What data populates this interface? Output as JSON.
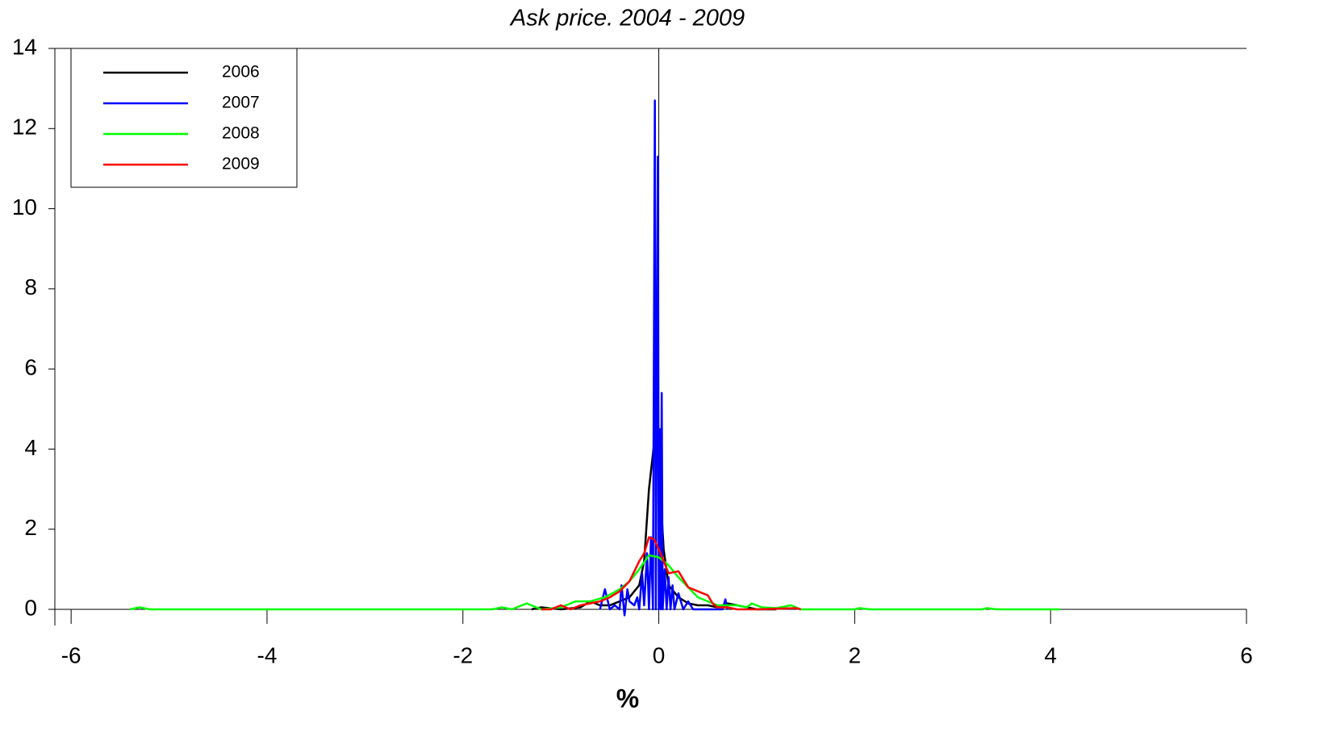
{
  "chart_data": {
    "type": "line",
    "title": "Ask price. 2004 - 2009",
    "x_label": "%",
    "xlim": [
      -6.166,
      6
    ],
    "ylim": [
      0,
      14
    ],
    "xticks": [
      -6,
      -4,
      -2,
      0,
      2,
      4,
      6
    ],
    "yticks": [
      0,
      2,
      4,
      6,
      8,
      10,
      12,
      14
    ],
    "legend": "upper-left",
    "series": [
      {
        "name": "2006",
        "color": "#000000",
        "x": [
          -1.3,
          -1.2,
          -1.0,
          -0.8,
          -0.7,
          -0.6,
          -0.5,
          -0.4,
          -0.3,
          -0.2,
          -0.15,
          -0.1,
          -0.05,
          0,
          0.05,
          0.1,
          0.2,
          0.3,
          0.4,
          0.5,
          0.6,
          0.7,
          0.8,
          1.0,
          1.2
        ],
        "values": [
          0,
          0.05,
          0,
          0.05,
          0.2,
          0.1,
          0.1,
          0.2,
          0.3,
          0.6,
          1.2,
          3.0,
          4.1,
          3.6,
          1.5,
          0.6,
          0.3,
          0.15,
          0.1,
          0.1,
          0.05,
          0.15,
          0.1,
          0,
          0
        ]
      },
      {
        "name": "2007",
        "color": "#0000ff",
        "x": [
          -0.6,
          -0.55,
          -0.5,
          -0.45,
          -0.4,
          -0.38,
          -0.35,
          -0.32,
          -0.3,
          -0.25,
          -0.22,
          -0.2,
          -0.17,
          -0.15,
          -0.12,
          -0.1,
          -0.08,
          -0.06,
          -0.04,
          -0.03,
          -0.01,
          0,
          0.01,
          0.02,
          0.03,
          0.04,
          0.06,
          0.08,
          0.1,
          0.12,
          0.14,
          0.16,
          0.2,
          0.25,
          0.3,
          0.35,
          0.5,
          0.65,
          0.68,
          0.7
        ],
        "values": [
          0,
          0.5,
          0,
          0.1,
          0,
          0.6,
          -0.15,
          0.5,
          0.2,
          0.1,
          0.3,
          0,
          0.9,
          0.1,
          1.4,
          0,
          1.8,
          0,
          12.7,
          0,
          11.3,
          0,
          4.5,
          0,
          5.4,
          0,
          1.0,
          0,
          0.8,
          0,
          0.6,
          0,
          0.4,
          0,
          0.2,
          0,
          0,
          0,
          0.25,
          0
        ]
      },
      {
        "name": "2008",
        "color": "#00ff00",
        "x": [
          -5.4,
          -5.3,
          -5.2,
          -1.7,
          -1.6,
          -1.5,
          -1.35,
          -1.2,
          -1.0,
          -0.85,
          -0.7,
          -0.55,
          -0.4,
          -0.3,
          -0.2,
          -0.1,
          0,
          0.1,
          0.2,
          0.3,
          0.4,
          0.5,
          0.6,
          0.7,
          0.8,
          0.9,
          0.95,
          1.05,
          1.2,
          1.35,
          1.45,
          2.0,
          2.05,
          2.15,
          3.3,
          3.35,
          3.45,
          4.1
        ],
        "values": [
          0,
          0.05,
          0,
          0,
          0.05,
          0,
          0.15,
          0,
          0.05,
          0.2,
          0.2,
          0.3,
          0.5,
          0.7,
          1.0,
          1.35,
          1.3,
          1.1,
          0.8,
          0.55,
          0.3,
          0.2,
          0.1,
          0.1,
          0.1,
          0.05,
          0.15,
          0.05,
          0.03,
          0.1,
          0,
          0,
          0.03,
          0,
          0,
          0.03,
          0,
          0
        ]
      },
      {
        "name": "2009",
        "color": "#ff0000",
        "x": [
          -1.2,
          -1.1,
          -1.0,
          -0.9,
          -0.8,
          -0.7,
          -0.6,
          -0.5,
          -0.4,
          -0.3,
          -0.2,
          -0.15,
          -0.1,
          -0.05,
          0,
          0.05,
          0.1,
          0.2,
          0.3,
          0.4,
          0.5,
          0.55,
          0.6,
          0.7,
          0.8,
          1.0,
          1.4,
          1.45
        ],
        "values": [
          0,
          0,
          0.1,
          0,
          0.1,
          0.15,
          0.2,
          0.3,
          0.45,
          0.7,
          1.2,
          1.4,
          1.8,
          1.75,
          1.5,
          1.2,
          0.9,
          0.95,
          0.55,
          0.45,
          0.35,
          0.15,
          0.05,
          0.05,
          0,
          0,
          0.03,
          0
        ]
      }
    ]
  }
}
